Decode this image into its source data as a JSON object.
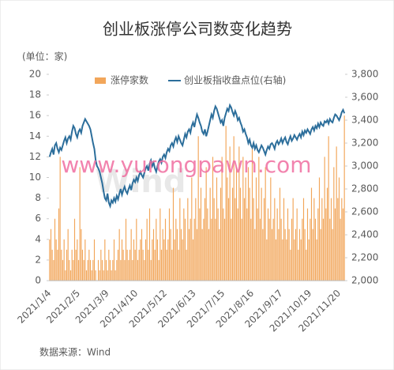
{
  "chart_data": {
    "type": "bar",
    "title": "创业板涨停公司数变化趋势",
    "y_unit": "(单位：家)",
    "source": "数据来源：Wind",
    "watermark": "www.yurongpawn.com",
    "watermark2": "Wind",
    "categories": [
      "2021/1/4",
      null,
      null,
      null,
      null,
      null,
      null,
      null,
      null,
      null,
      null,
      null,
      null,
      null,
      null,
      null,
      null,
      null,
      null,
      null,
      null,
      null,
      "2021/2/5",
      null,
      null,
      null,
      null,
      null,
      null,
      null,
      null,
      null,
      null,
      null,
      null,
      null,
      null,
      null,
      null,
      null,
      null,
      null,
      null,
      null,
      "2021/3/9",
      null,
      null,
      null,
      null,
      null,
      null,
      null,
      null,
      null,
      null,
      null,
      null,
      null,
      null,
      null,
      null,
      null,
      null,
      null,
      null,
      null,
      "2021/4/10",
      null,
      null,
      null,
      null,
      null,
      null,
      null,
      null,
      null,
      null,
      null,
      null,
      null,
      null,
      null,
      null,
      null,
      null,
      null,
      null,
      null,
      "2021/5/12",
      null,
      null,
      null,
      null,
      null,
      null,
      null,
      null,
      null,
      null,
      null,
      null,
      null,
      null,
      null,
      null,
      null,
      null,
      null,
      null,
      null,
      "2021/6/13",
      null,
      null,
      null,
      null,
      null,
      null,
      null,
      null,
      null,
      null,
      null,
      null,
      null,
      null,
      null,
      null,
      null,
      null,
      null,
      null,
      null,
      "2021/7/15",
      null,
      null,
      null,
      null,
      null,
      null,
      null,
      null,
      null,
      null,
      null,
      null,
      null,
      null,
      null,
      null,
      null,
      null,
      null,
      null,
      null,
      "2021/8/16",
      null,
      null,
      null,
      null,
      null,
      null,
      null,
      null,
      null,
      null,
      null,
      null,
      null,
      null,
      null,
      null,
      null,
      null,
      null,
      null,
      null,
      "2021/9/17",
      null,
      null,
      null,
      null,
      null,
      null,
      null,
      null,
      null,
      null,
      null,
      null,
      null,
      null,
      null,
      null,
      null,
      null,
      null,
      null,
      null,
      "2021/10/19",
      null,
      null,
      null,
      null,
      null,
      null,
      null,
      null,
      null,
      null,
      null,
      null,
      null,
      null,
      null,
      null,
      null,
      null,
      null,
      null,
      null,
      "2021/11/20",
      null,
      null,
      null,
      null
    ],
    "series": [
      {
        "name": "涨停家数",
        "type": "bar",
        "color": "#f2a65a",
        "values": [
          4,
          5,
          3,
          2,
          6,
          4,
          3,
          7,
          12,
          3,
          2,
          4,
          1,
          3,
          5,
          2,
          1,
          3,
          2,
          6,
          3,
          4,
          2,
          11,
          5,
          3,
          2,
          4,
          1,
          2,
          3,
          2,
          1,
          2,
          4,
          1,
          0,
          2,
          1,
          3,
          2,
          1,
          4,
          2,
          1,
          3,
          2,
          1,
          2,
          4,
          1,
          2,
          3,
          5,
          2,
          4,
          3,
          2,
          6,
          3,
          2,
          3,
          5,
          2,
          4,
          3,
          6,
          2,
          3,
          4,
          5,
          3,
          2,
          4,
          6,
          3,
          7,
          2,
          4,
          5,
          3,
          6,
          4,
          2,
          7,
          3,
          5,
          4,
          6,
          3,
          4,
          7,
          5,
          3,
          9,
          4,
          6,
          5,
          3,
          8,
          5,
          4,
          7,
          6,
          3,
          8,
          5,
          6,
          10,
          4,
          6,
          8,
          5,
          14,
          7,
          9,
          5,
          6,
          8,
          11,
          7,
          5,
          9,
          6,
          12,
          8,
          6,
          10,
          7,
          5,
          9,
          12,
          7,
          6,
          15,
          10,
          8,
          13,
          6,
          9,
          14,
          8,
          11,
          7,
          13,
          9,
          6,
          12,
          8,
          10,
          7,
          11,
          9,
          6,
          13,
          8,
          5,
          10,
          7,
          12,
          6,
          9,
          5,
          8,
          11,
          4,
          7,
          6,
          10,
          5,
          6,
          8,
          4,
          7,
          5,
          9,
          6,
          4,
          8,
          5,
          4,
          7,
          5,
          3,
          6,
          8,
          4,
          5,
          7,
          3,
          5,
          4,
          6,
          8,
          5,
          3,
          7,
          4,
          6,
          9,
          5,
          8,
          6,
          4,
          7,
          10,
          5,
          8,
          6,
          12,
          7,
          9,
          14,
          6,
          8,
          5,
          11,
          7,
          13,
          8,
          10,
          6,
          8,
          7,
          16
        ]
      },
      {
        "name": "创业板指收盘点位(右轴)",
        "type": "line",
        "axis": "y2",
        "color": "#2c6e9b",
        "values": [
          3080,
          3120,
          3150,
          3100,
          3180,
          3200,
          3150,
          3120,
          3160,
          3140,
          3180,
          3220,
          3250,
          3200,
          3240,
          3260,
          3230,
          3300,
          3350,
          3330,
          3280,
          3250,
          3300,
          3320,
          3290,
          3350,
          3380,
          3410,
          3390,
          3370,
          3350,
          3320,
          3260,
          3200,
          3150,
          3050,
          3000,
          2980,
          2950,
          2900,
          2850,
          2780,
          2720,
          2700,
          2760,
          2680,
          2650,
          2700,
          2680,
          2720,
          2690,
          2740,
          2710,
          2760,
          2800,
          2750,
          2790,
          2820,
          2780,
          2760,
          2800,
          2830,
          2790,
          2850,
          2880,
          2860,
          2900,
          2870,
          2920,
          2950,
          2920,
          2900,
          2940,
          2980,
          3000,
          2960,
          3020,
          3050,
          3000,
          3030,
          2980,
          2950,
          3000,
          3040,
          3060,
          3030,
          3080,
          3100,
          3070,
          3120,
          3150,
          3130,
          3180,
          3200,
          3170,
          3220,
          3250,
          3210,
          3260,
          3230,
          3200,
          3180,
          3230,
          3280,
          3250,
          3300,
          3320,
          3290,
          3350,
          3380,
          3340,
          3400,
          3450,
          3420,
          3380,
          3350,
          3300,
          3280,
          3320,
          3260,
          3300,
          3350,
          3400,
          3450,
          3420,
          3480,
          3520,
          3500,
          3460,
          3420,
          3380,
          3400,
          3350,
          3420,
          3460,
          3500,
          3480,
          3530,
          3510,
          3470,
          3440,
          3480,
          3450,
          3400,
          3420,
          3380,
          3350,
          3300,
          3320,
          3280,
          3250,
          3200,
          3230,
          3180,
          3160,
          3200,
          3150,
          3180,
          3140,
          3120,
          3150,
          3180,
          3160,
          3130,
          3100,
          3140,
          3170,
          3150,
          3190,
          3200,
          3180,
          3150,
          3200,
          3220,
          3190,
          3210,
          3240,
          3200,
          3230,
          3250,
          3210,
          3190,
          3230,
          3260,
          3220,
          3240,
          3270,
          3250,
          3230,
          3260,
          3280,
          3250,
          3300,
          3270,
          3310,
          3290,
          3320,
          3300,
          3280,
          3320,
          3340,
          3310,
          3350,
          3330,
          3370,
          3340,
          3380,
          3360,
          3350,
          3390,
          3380,
          3400,
          3370,
          3410,
          3390,
          3380,
          3420,
          3450,
          3440,
          3420,
          3400,
          3430,
          3470,
          3490,
          3460
        ]
      }
    ],
    "ylim": [
      0,
      20
    ],
    "yticks": [
      0,
      2,
      4,
      6,
      8,
      10,
      12,
      14,
      16,
      18,
      20
    ],
    "y2lim": [
      2000,
      3800
    ],
    "y2ticks": [
      {
        "value": 2000,
        "label": "2,000"
      },
      {
        "value": 2200,
        "label": "2,200"
      },
      {
        "value": 2400,
        "label": "2,400"
      },
      {
        "value": 2600,
        "label": "2,600"
      },
      {
        "value": 2800,
        "label": "2,800"
      },
      {
        "value": 3000,
        "label": "3,000"
      },
      {
        "value": 3200,
        "label": "3,200"
      },
      {
        "value": 3400,
        "label": "3,400"
      },
      {
        "value": 3600,
        "label": "3,600"
      },
      {
        "value": 3800,
        "label": "3,800"
      }
    ],
    "grid": false,
    "legend": "top"
  }
}
